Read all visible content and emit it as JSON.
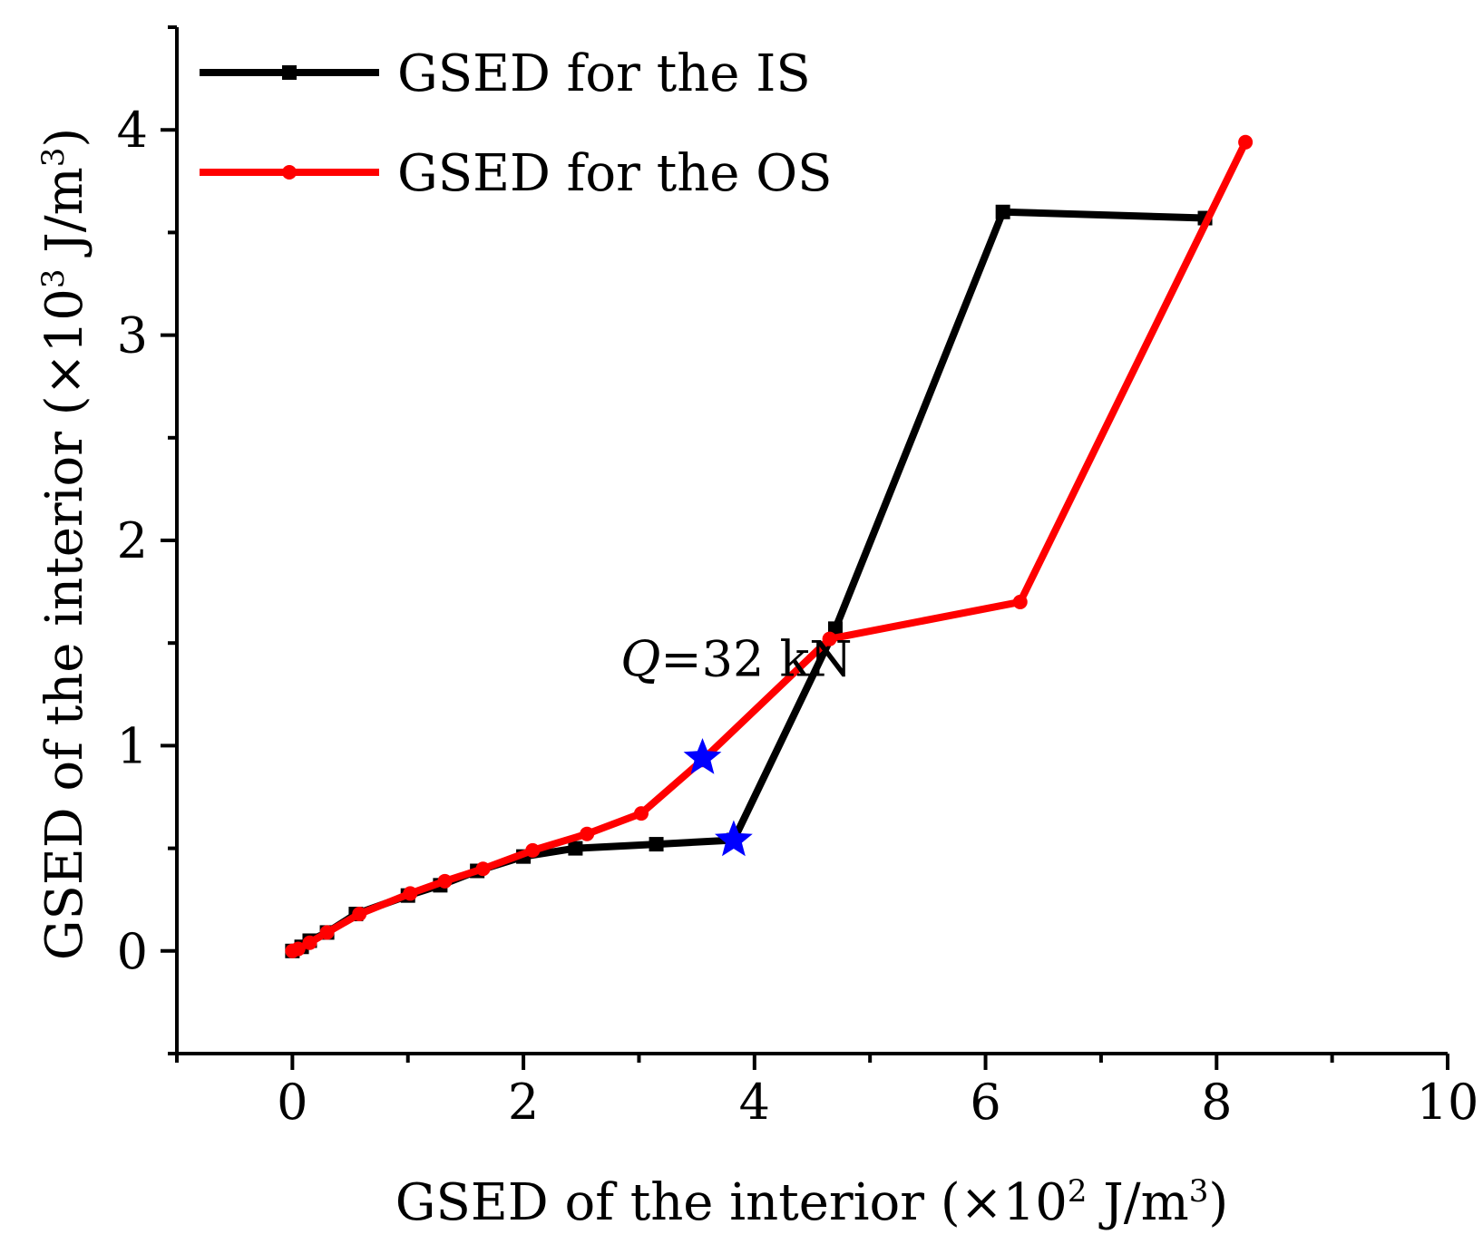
{
  "chart_data": {
    "type": "line",
    "title": "",
    "xlabel": {
      "prefix": "GSED of the interior (×10",
      "exp1": "2",
      "middle": " J/m",
      "exp2": "3",
      "suffix": ")"
    },
    "ylabel": {
      "prefix": "GSED of the interior (×10",
      "exp1": "3",
      "middle": " J/m",
      "exp2": "3",
      "suffix": ")"
    },
    "xlim": [
      -1,
      10
    ],
    "ylim": [
      -0.5,
      4.5
    ],
    "x_ticks": [
      0,
      2,
      4,
      6,
      8,
      10
    ],
    "x_tick_labels": [
      "0",
      "2",
      "4",
      "6",
      "8",
      "10"
    ],
    "y_ticks": [
      0,
      1,
      2,
      3,
      4
    ],
    "y_tick_labels": [
      "0",
      "1",
      "2",
      "3",
      "4"
    ],
    "grid": false,
    "legend_position": "top-left",
    "series": [
      {
        "name": "GSED for the IS",
        "color": "#000000",
        "marker": "square",
        "x": [
          0,
          0.08,
          0.15,
          0.3,
          0.55,
          1.0,
          1.28,
          1.6,
          2.0,
          2.45,
          3.15,
          3.82,
          4.7,
          6.15,
          7.9
        ],
        "y": [
          0,
          0.02,
          0.05,
          0.09,
          0.18,
          0.27,
          0.32,
          0.39,
          0.46,
          0.5,
          0.52,
          0.54,
          1.57,
          3.6,
          3.57
        ]
      },
      {
        "name": "GSED for the OS",
        "color": "#ff0000",
        "marker": "circle",
        "x": [
          0,
          0.05,
          0.15,
          0.3,
          0.58,
          1.02,
          1.32,
          1.65,
          2.08,
          2.55,
          3.02,
          3.55,
          4.65,
          6.3,
          8.25
        ],
        "y": [
          0,
          0.01,
          0.04,
          0.09,
          0.18,
          0.28,
          0.34,
          0.4,
          0.49,
          0.57,
          0.67,
          0.93,
          1.52,
          1.7,
          3.94
        ]
      }
    ],
    "highlights": [
      {
        "series": "GSED for the OS",
        "x": 3.55,
        "y": 0.94,
        "marker": "star",
        "color": "#0000ff"
      },
      {
        "series": "GSED for the IS",
        "x": 3.82,
        "y": 0.54,
        "marker": "star",
        "color": "#0000ff"
      }
    ],
    "annotations": [
      {
        "italic": "Q",
        "text": "=32 kN",
        "x": 4.0,
        "y": 1.42
      }
    ]
  }
}
